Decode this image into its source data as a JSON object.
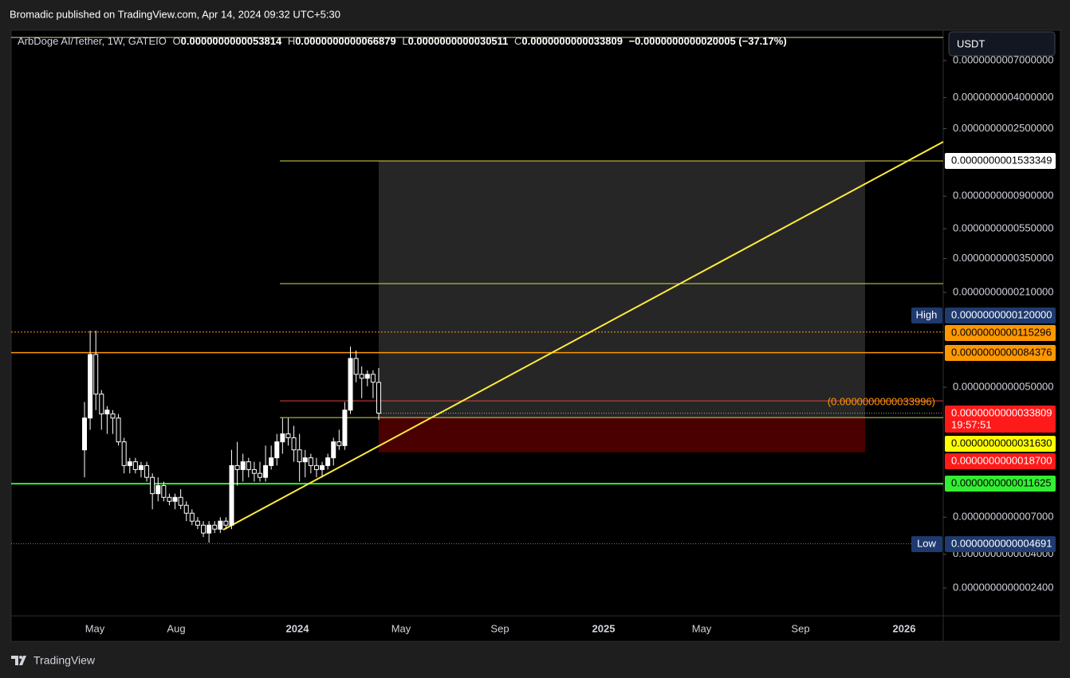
{
  "header": {
    "publisher": "Bromadic published on TradingView.com, Apr 14, 2024 09:32 UTC+5:30"
  },
  "legend": {
    "symbol": "ArbDoge AI/Tether, 1W, GATEIO",
    "fields": [
      {
        "key": "O",
        "text": "0.0000000000053814"
      },
      {
        "key": "H",
        "text": "0.0000000000066879"
      },
      {
        "key": "L",
        "text": "0.0000000000030511"
      },
      {
        "key": "C",
        "text": "0.0000000000033809"
      }
    ],
    "change": "−0.0000000000020005 (−37.17%)"
  },
  "currency_button": "USDT",
  "chart_data": {
    "type": "candlestick",
    "yscale": "log",
    "ylim": [
      1.576e-13,
      1.08e-09
    ],
    "yticks": [
      {
        "value": 7e-10,
        "label": "0.0000000007000000"
      },
      {
        "value": 4e-10,
        "label": "0.0000000004000000"
      },
      {
        "value": 2.5e-10,
        "label": "0.0000000002500000"
      },
      {
        "value": 9e-11,
        "label": "0.0000000000900000"
      },
      {
        "value": 5.5e-11,
        "label": "0.0000000000550000"
      },
      {
        "value": 3.5e-11,
        "label": "0.0000000000350000"
      },
      {
        "value": 2.1e-11,
        "label": "0.0000000000210000"
      },
      {
        "value": 5e-12,
        "label": "0.0000000000050000"
      },
      {
        "value": 7e-13,
        "label": "0.0000000000007000"
      },
      {
        "value": 4e-13,
        "label": "0.0000000000004000"
      },
      {
        "value": 2.4e-13,
        "label": "0.0000000000002400"
      }
    ],
    "time_labels": [
      "May",
      "Aug",
      "2024",
      "May",
      "Sep",
      "2025",
      "May",
      "Sep",
      "2026"
    ],
    "candles": {
      "open": [
        1.94e-12,
        3.14e-12,
        8.21e-12,
        4.51e-12,
        3.34e-12,
        3.34e-12,
        3.14e-12,
        2.19e-12,
        1.53e-12,
        1.62e-12,
        1.44e-12,
        1.53e-12,
        1.28e-12,
        1e-12,
        1.13e-12,
        9.46e-13,
        8.91e-13,
        9.46e-13,
        8.39e-13,
        7.44e-13,
        6.6e-13,
        6.21e-13,
        5.51e-13,
        6.21e-13,
        5.85e-13,
        6.6e-13,
        6.21e-13,
        1.53e-12,
        1.44e-12,
        1.62e-12,
        1.44e-12,
        1.36e-12,
        1.28e-12,
        1.53e-12,
        1.72e-12,
        2.19e-12,
        2.47e-12,
        2.33e-12,
        1.94e-12,
        1.62e-12,
        1.72e-12,
        1.53e-12,
        1.44e-12,
        1.53e-12,
        1.72e-12,
        2.19e-12,
        2.07e-12,
        3.54e-12,
        7.73e-12,
        6.08e-12,
        5.73e-12,
        6.08e-12,
        5.3814e-12
      ],
      "high": [
        4e-12,
        1.178e-11,
        1.178e-11,
        4.79e-12,
        3.76e-12,
        3.54e-12,
        3.34e-12,
        2.33e-12,
        1.72e-12,
        1.72e-12,
        1.62e-12,
        1.62e-12,
        1.36e-12,
        1.28e-12,
        1.2e-12,
        1e-12,
        1e-12,
        1.07e-12,
        8.91e-13,
        7.9e-13,
        7e-13,
        6.6e-13,
        6.6e-13,
        6.6e-13,
        7e-13,
        7e-13,
        1.94e-12,
        2.19e-12,
        1.83e-12,
        1.72e-12,
        1.62e-12,
        1.62e-12,
        2.07e-12,
        2.07e-12,
        2.47e-12,
        3.14e-12,
        3.14e-12,
        2.79e-12,
        2.47e-12,
        1.94e-12,
        1.83e-12,
        1.72e-12,
        1.62e-12,
        1.83e-12,
        2.33e-12,
        2.63e-12,
        4e-12,
        9.26e-12,
        8.72e-12,
        6.86e-12,
        6.46e-12,
        6.46e-12,
        6.6879e-12
      ],
      "low": [
        1.28e-12,
        2.63e-12,
        3.54e-12,
        2.63e-12,
        2.47e-12,
        2.47e-12,
        2.07e-12,
        1.36e-12,
        1.36e-12,
        1.36e-12,
        1.28e-12,
        1.2e-12,
        7.9e-13,
        8.91e-13,
        8.91e-13,
        8.39e-13,
        7.9e-13,
        7.9e-13,
        6.6e-13,
        6.21e-13,
        5.85e-13,
        5.19e-13,
        4.77e-13,
        5.51e-13,
        5.51e-13,
        5.85e-13,
        5.85e-13,
        1.13e-12,
        1.2e-12,
        1.28e-12,
        1.2e-12,
        1.2e-12,
        1.2e-12,
        1.44e-12,
        1.53e-12,
        1.83e-12,
        2.07e-12,
        1.62e-12,
        1.2e-12,
        1.28e-12,
        1.36e-12,
        1.28e-12,
        1.28e-12,
        1.44e-12,
        1.53e-12,
        1.94e-12,
        1.94e-12,
        3.34e-12,
        5.4e-12,
        4.24e-12,
        5.08e-12,
        4.24e-12,
        3.0511e-12
      ],
      "close": [
        3.14e-12,
        8.21e-12,
        4.51e-12,
        3.34e-12,
        3.54e-12,
        3.14e-12,
        2.19e-12,
        1.53e-12,
        1.62e-12,
        1.44e-12,
        1.53e-12,
        1.28e-12,
        1e-12,
        1.13e-12,
        9.46e-13,
        8.91e-13,
        9.46e-13,
        8.39e-13,
        7.44e-13,
        6.6e-13,
        6.21e-13,
        5.51e-13,
        6.21e-13,
        5.85e-13,
        6.6e-13,
        6.21e-13,
        1.53e-12,
        1.44e-12,
        1.62e-12,
        1.44e-12,
        1.36e-12,
        1.28e-12,
        1.53e-12,
        1.72e-12,
        2.19e-12,
        2.47e-12,
        2.33e-12,
        1.94e-12,
        1.62e-12,
        1.72e-12,
        1.53e-12,
        1.44e-12,
        1.53e-12,
        1.72e-12,
        2.19e-12,
        2.07e-12,
        3.54e-12,
        7.73e-12,
        6.08e-12,
        5.73e-12,
        6.08e-12,
        5.4e-12,
        3.3809e-12
      ]
    },
    "price_labels": [
      {
        "text": "0.0000000001533349",
        "value": 1.533349e-10,
        "color": "#ffffff"
      },
      {
        "text": "0.0000000000120000",
        "value": 1.2e-11,
        "color": "#1e3a6e",
        "tag": "High"
      },
      {
        "text": "0.0000000000115296",
        "value": 1.15296e-11,
        "color": "#ff9800"
      },
      {
        "text": "0.0000000000084376",
        "value": 8.4376e-12,
        "color": "#ff9800"
      },
      {
        "text": "0.0000000000033809",
        "value": 3.3809e-12,
        "color": "#ff1a1a",
        "countdown": "19:57:51"
      },
      {
        "text": "0.0000000000031630",
        "value": 3.163e-12,
        "color": "#ffff00"
      },
      {
        "text": "0.0000000000018700",
        "value": 1.87e-12,
        "color": "#ff1a1a"
      },
      {
        "text": "0.0000000000011625",
        "value": 1.1625e-12,
        "color": "#33ee33"
      },
      {
        "text": "0.0000000000004691",
        "value": 4.691e-13,
        "color": "#1e3a6e",
        "tag": "Low"
      }
    ],
    "annotation": {
      "text": "(0.0000000000033996)",
      "value": 3.3996e-12
    }
  },
  "footer": {
    "brand": "TradingView"
  }
}
